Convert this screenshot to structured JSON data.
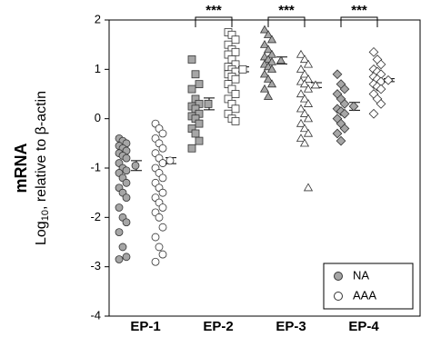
{
  "chart_data": {
    "type": "dot",
    "ylabel": {
      "title": "mRNA",
      "prefix": "Log",
      "subscript": "10",
      "suffix": ", relative to β-actin"
    },
    "categories": [
      "EP-1",
      "EP-2",
      "EP-3",
      "EP-4"
    ],
    "markers": [
      "circle",
      "square",
      "triangle",
      "diamond"
    ],
    "significance": [
      null,
      "***",
      "***",
      "***"
    ],
    "ylim": [
      -4,
      2
    ],
    "yticks": [
      -4,
      -3,
      -2,
      -1,
      0,
      1,
      2
    ],
    "legend": "bottom-right",
    "series": [
      {
        "name": "NA",
        "color": "#a6a6a6",
        "values": [
          [
            -0.4,
            -0.45,
            -0.5,
            -0.55,
            -0.6,
            -0.65,
            -0.7,
            -0.75,
            -0.8,
            -0.9,
            -1.0,
            -1.05,
            -1.1,
            -1.2,
            -1.3,
            -1.4,
            -1.5,
            -1.6,
            -1.8,
            -2.0,
            -2.1,
            -2.3,
            -2.6,
            -2.8,
            -2.85
          ],
          [
            1.2,
            0.9,
            0.7,
            0.6,
            0.4,
            0.3,
            0.25,
            0.2,
            0.1,
            0.05,
            0,
            -0.1,
            -0.2,
            -0.3,
            -0.45,
            -0.6
          ],
          [
            1.8,
            1.7,
            1.6,
            1.5,
            1.4,
            1.3,
            1.25,
            1.2,
            1.15,
            1.1,
            1.05,
            1.0,
            0.9,
            0.8,
            0.7,
            0.6,
            0.45
          ],
          [
            0.9,
            0.7,
            0.6,
            0.5,
            0.4,
            0.3,
            0.2,
            0.15,
            0.1,
            0,
            -0.1,
            -0.2,
            -0.3,
            -0.45
          ]
        ],
        "means": [
          -0.95,
          0.3,
          1.18,
          0.25
        ],
        "errors": [
          0.1,
          0.12,
          0.07,
          0.08
        ]
      },
      {
        "name": "AAA",
        "color": "#ffffff",
        "values": [
          [
            -0.1,
            -0.2,
            -0.3,
            -0.4,
            -0.5,
            -0.6,
            -0.7,
            -0.8,
            -0.9,
            -1.0,
            -1.1,
            -1.2,
            -1.3,
            -1.4,
            -1.5,
            -1.6,
            -1.7,
            -1.8,
            -1.9,
            -2.0,
            -2.2,
            -2.4,
            -2.6,
            -2.75,
            -2.9
          ],
          [
            1.75,
            1.7,
            1.6,
            1.5,
            1.4,
            1.35,
            1.3,
            1.2,
            1.1,
            1.05,
            1.0,
            0.95,
            0.9,
            0.85,
            0.8,
            0.7,
            0.6,
            0.5,
            0.4,
            0.3,
            0.2,
            0.1,
            0,
            -0.05
          ],
          [
            1.3,
            1.2,
            1.1,
            1.0,
            0.9,
            0.8,
            0.75,
            0.7,
            0.6,
            0.5,
            0.4,
            0.3,
            0.2,
            0.1,
            0,
            -0.1,
            -0.2,
            -0.3,
            -0.4,
            -0.5,
            -1.4
          ],
          [
            1.35,
            1.2,
            1.1,
            1.0,
            0.95,
            0.9,
            0.85,
            0.8,
            0.75,
            0.7,
            0.65,
            0.6,
            0.5,
            0.4,
            0.3,
            0.1
          ]
        ],
        "means": [
          -0.85,
          1.0,
          0.68,
          0.78
        ],
        "errors": [
          0.06,
          0.05,
          0.05,
          0.03
        ]
      }
    ]
  }
}
